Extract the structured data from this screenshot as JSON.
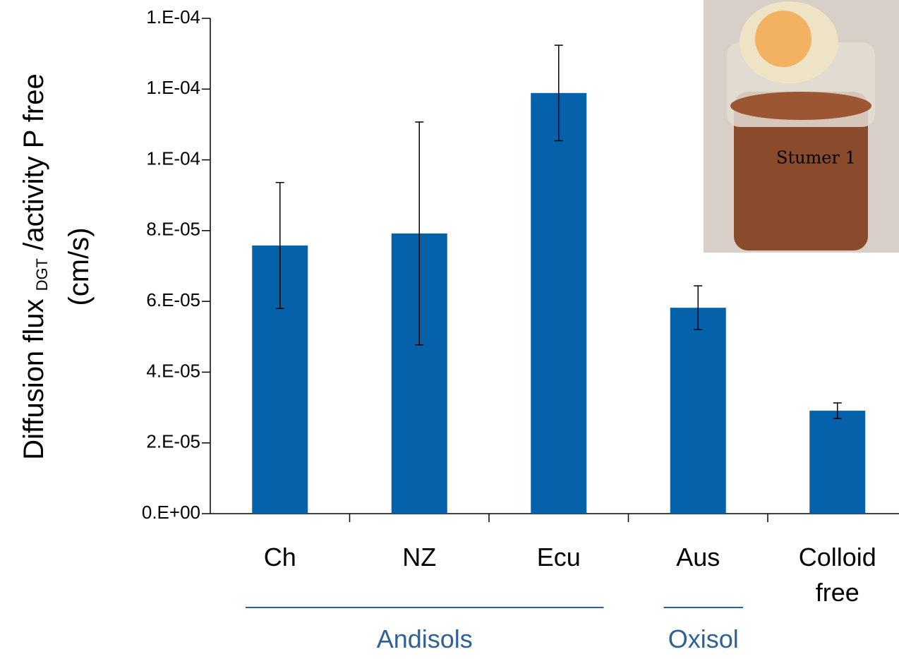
{
  "chart_data": {
    "type": "bar",
    "y_label": {
      "prefix": "Diffusion flux",
      "subscript": "DGT",
      "suffix": " /activity P free",
      "line2": "(cm/s)"
    },
    "categories": [
      "Ch",
      "NZ",
      "Ecu",
      "Aus",
      "Colloid free"
    ],
    "series": [
      {
        "color": "#0562aa",
        "values": [
          7.58e-05,
          7.92e-05,
          0.0001189,
          5.82e-05,
          2.91e-05
        ],
        "errors": [
          1.78e-05,
          3.15e-05,
          1.35e-05,
          6.2e-06,
          2.2e-06
        ]
      }
    ],
    "groups": [
      {
        "name": "Andisols",
        "members": [
          "Ch",
          "NZ",
          "Ecu"
        ],
        "color": "#2f6196"
      },
      {
        "name": "Oxisol",
        "members": [
          "Aus"
        ],
        "color": "#2f6196"
      }
    ],
    "ylim": [
      0,
      0.00014
    ],
    "yticks": [
      {
        "value": 0,
        "label": "0.E+00"
      },
      {
        "value": 2e-05,
        "label": "2.E-05"
      },
      {
        "value": 4e-05,
        "label": "4.E-05"
      },
      {
        "value": 6e-05,
        "label": "6.E-05"
      },
      {
        "value": 8e-05,
        "label": "8.E-05"
      },
      {
        "value": 0.0001,
        "label": "1.E-04"
      },
      {
        "value": 0.00012,
        "label": "1.E-04"
      },
      {
        "value": 0.00014,
        "label": "1.E-04"
      }
    ]
  }
}
